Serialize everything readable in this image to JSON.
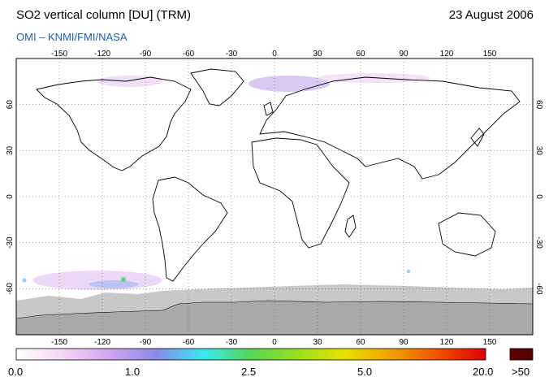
{
  "header": {
    "title": "SO2 vertical column [DU] (TRM)",
    "date": "23 August 2006",
    "source": "OMI  –  KNMI/FMI/NASA"
  },
  "map": {
    "projection": "equirectangular",
    "lon_range": [
      -180,
      180
    ],
    "lat_range": [
      -90,
      90
    ],
    "lon_ticks": [
      -150,
      -120,
      -90,
      -60,
      -30,
      0,
      30,
      60,
      90,
      120,
      150
    ],
    "lat_ticks": [
      60,
      30,
      0,
      -30,
      -60
    ],
    "lon_tick_labels": [
      "-150",
      "-120",
      "-90",
      "-60",
      "-30",
      "0",
      "30",
      "60",
      "90",
      "120",
      "150"
    ],
    "lat_tick_labels": [
      "60",
      "30",
      "0",
      "-30",
      "-60"
    ],
    "gridlines": "dotted",
    "colors": {
      "land_outline": "#000000",
      "no_data": "#a9a9a9",
      "no_data_light": "#c8c8c8",
      "background": "#ffffff"
    }
  },
  "colorbar": {
    "labels": [
      "0.0",
      "1.0",
      "2.5",
      "5.0",
      "20.0",
      ">50"
    ],
    "stops": [
      "#ffffff",
      "#f3d6f3",
      "#cfa6ee",
      "#8a8ae8",
      "#38e8f0",
      "#55d655",
      "#98e020",
      "#e8e000",
      "#f0a000",
      "#f05000",
      "#e00000"
    ],
    "overflow_color": "#5a0000"
  }
}
